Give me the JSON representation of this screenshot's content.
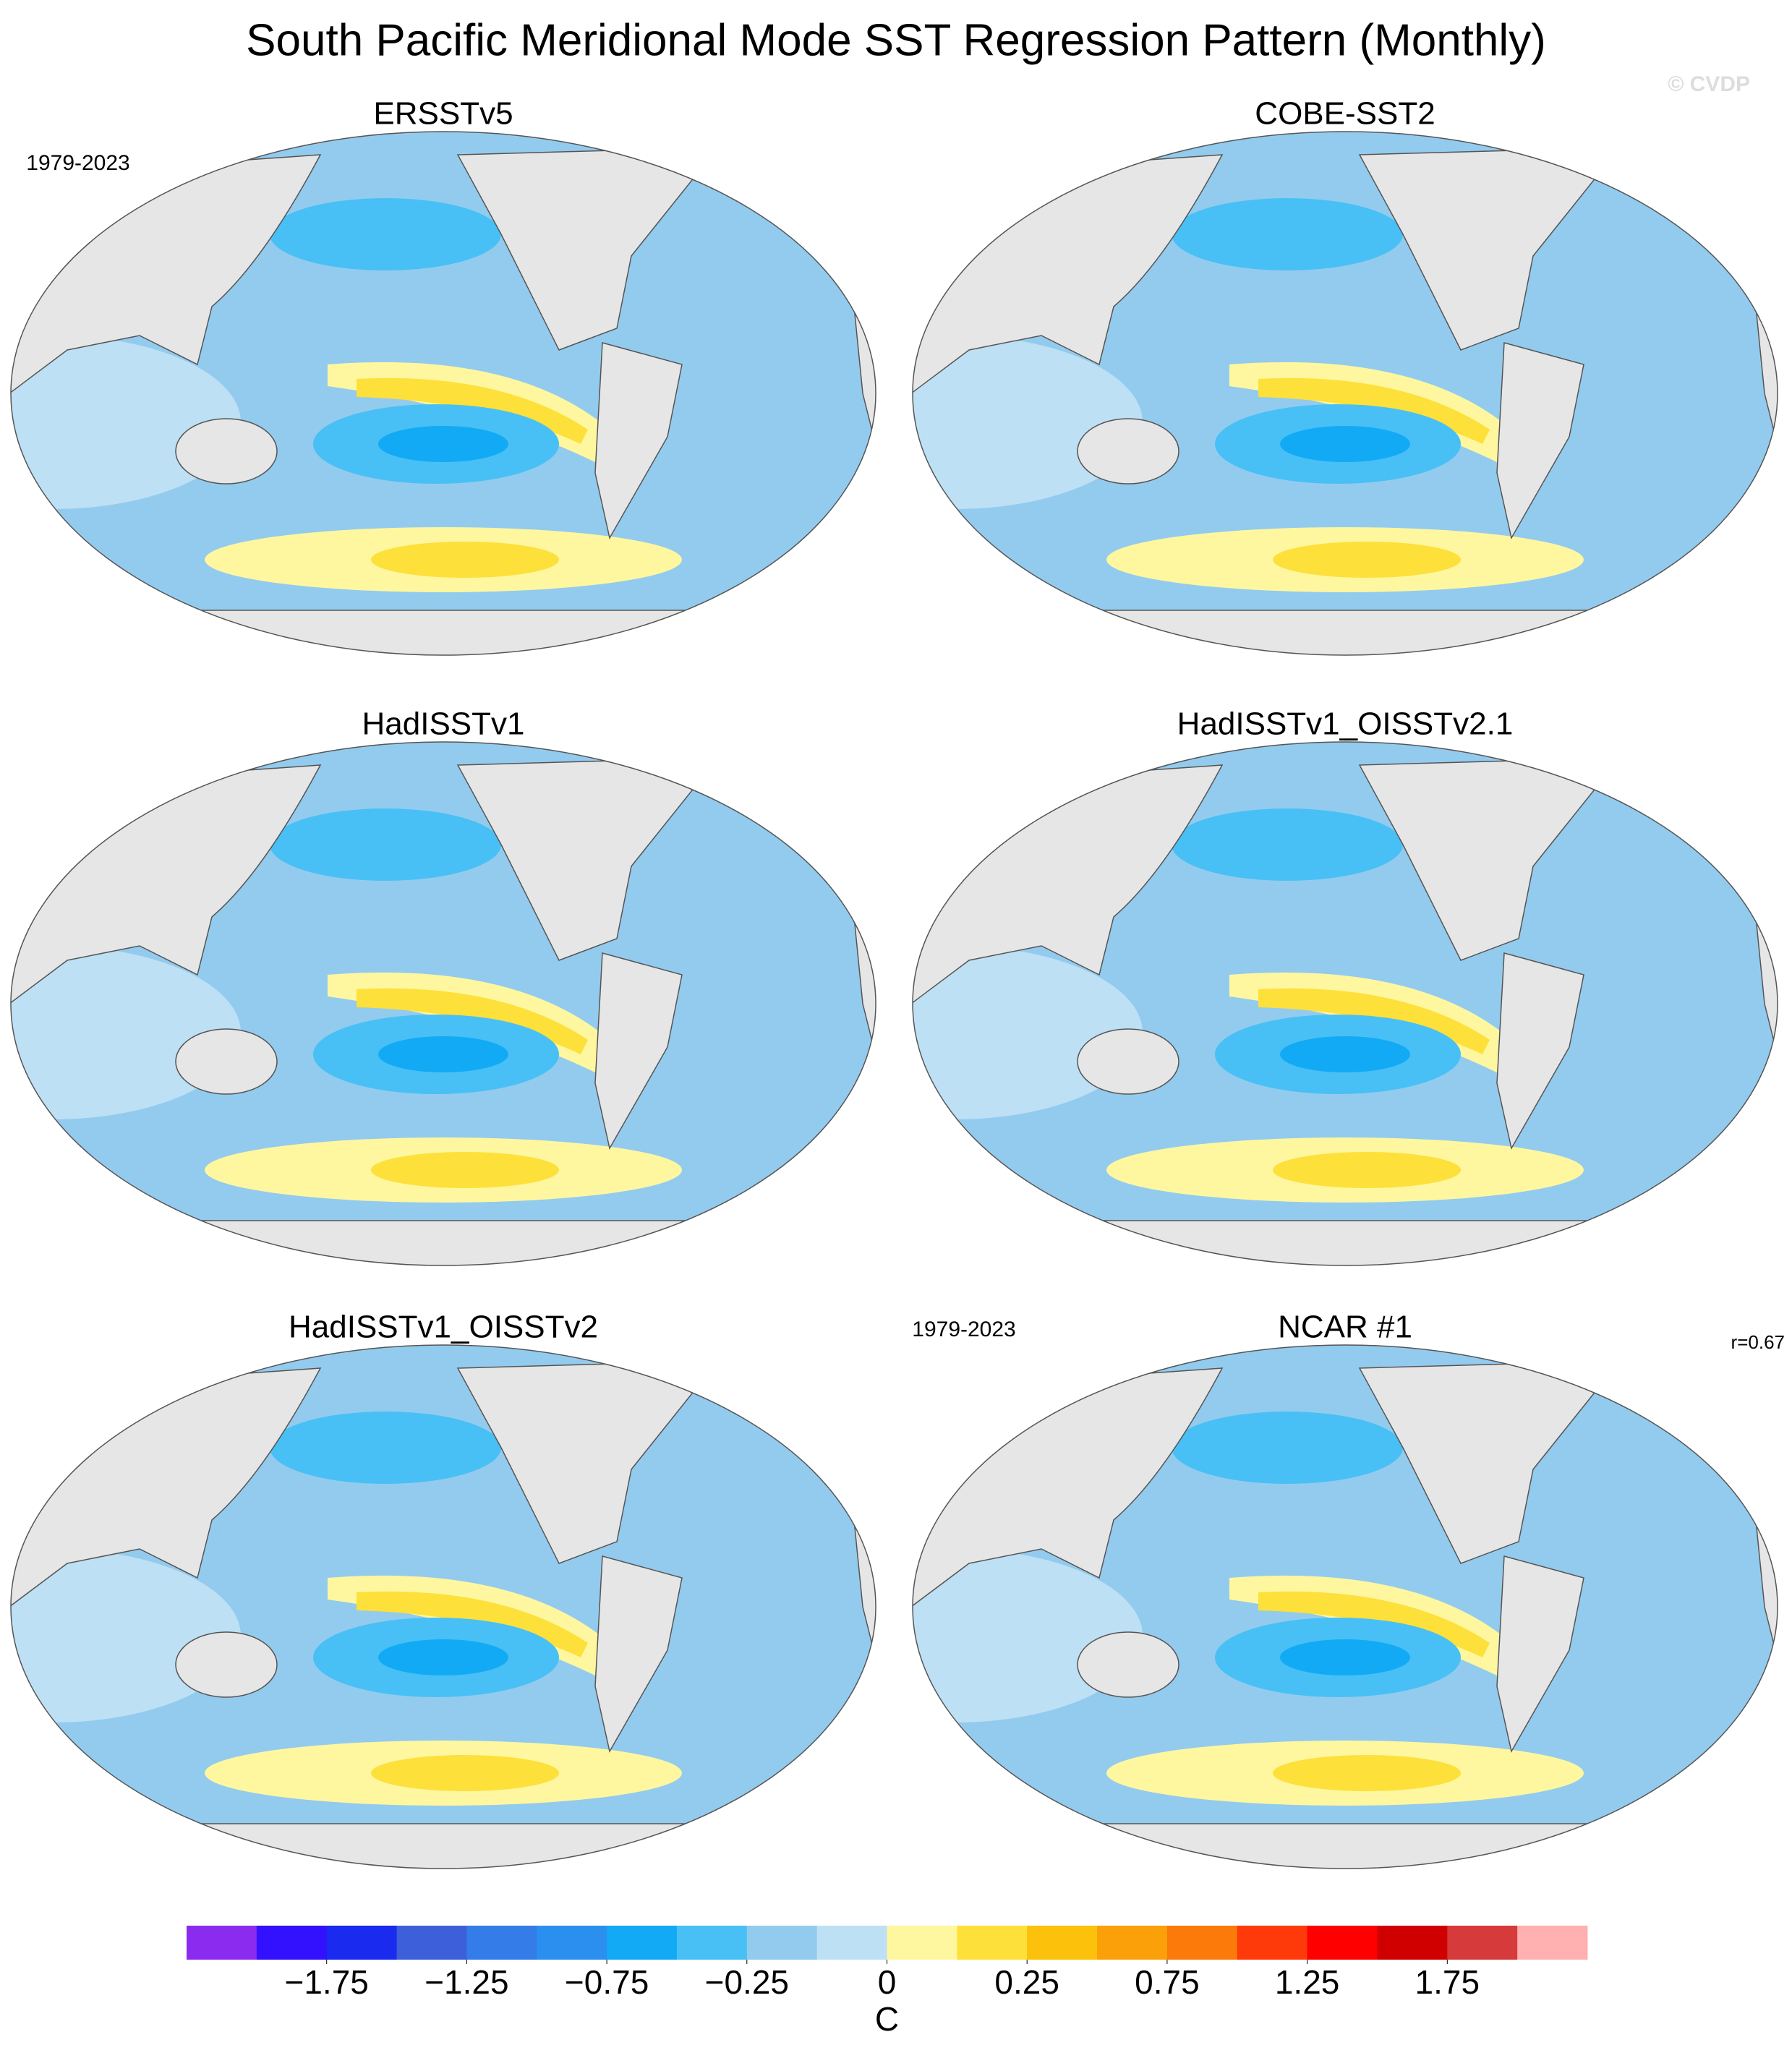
{
  "title": "South Pacific Meridional Mode SST Regression Pattern (Monthly)",
  "copyright": "© CVDP",
  "panels": [
    {
      "title": "ERSSTv5",
      "period": "1979-2023"
    },
    {
      "title": "COBE-SST2"
    },
    {
      "title": "HadISSTv1"
    },
    {
      "title": "HadISSTv1_OISSTv2.1"
    },
    {
      "title": "HadISSTv1_OISSTv2"
    },
    {
      "title": "NCAR #1",
      "period": "1979-2023",
      "r": "r=0.67"
    }
  ],
  "colorbar": {
    "unit": "C",
    "levels": [
      -2,
      -1.75,
      -1.5,
      -1.25,
      -1,
      -0.75,
      -0.5,
      -0.25,
      -0.1,
      0,
      0.1,
      0.25,
      0.5,
      0.75,
      1,
      1.25,
      1.5,
      1.75,
      2
    ],
    "colors": [
      "#8c2bf0",
      "#3311ff",
      "#1a2aee",
      "#3d5fd9",
      "#347de8",
      "#2b8fef",
      "#12aaf5",
      "#48c0f5",
      "#93cbee",
      "#bde0f5",
      "#fef7a0",
      "#fde03a",
      "#fcc10a",
      "#fca00a",
      "#fc7a0a",
      "#ff3a0a",
      "#fe0000",
      "#d00000",
      "#d63a3a",
      "#ffb0b0"
    ],
    "ticks": [
      {
        "value": -1.75,
        "label": "−1.75"
      },
      {
        "value": -1.25,
        "label": "−1.25"
      },
      {
        "value": -0.75,
        "label": "−0.75"
      },
      {
        "value": -0.25,
        "label": "−0.25"
      },
      0,
      0.25,
      0.75,
      1.25,
      1.75
    ]
  }
}
